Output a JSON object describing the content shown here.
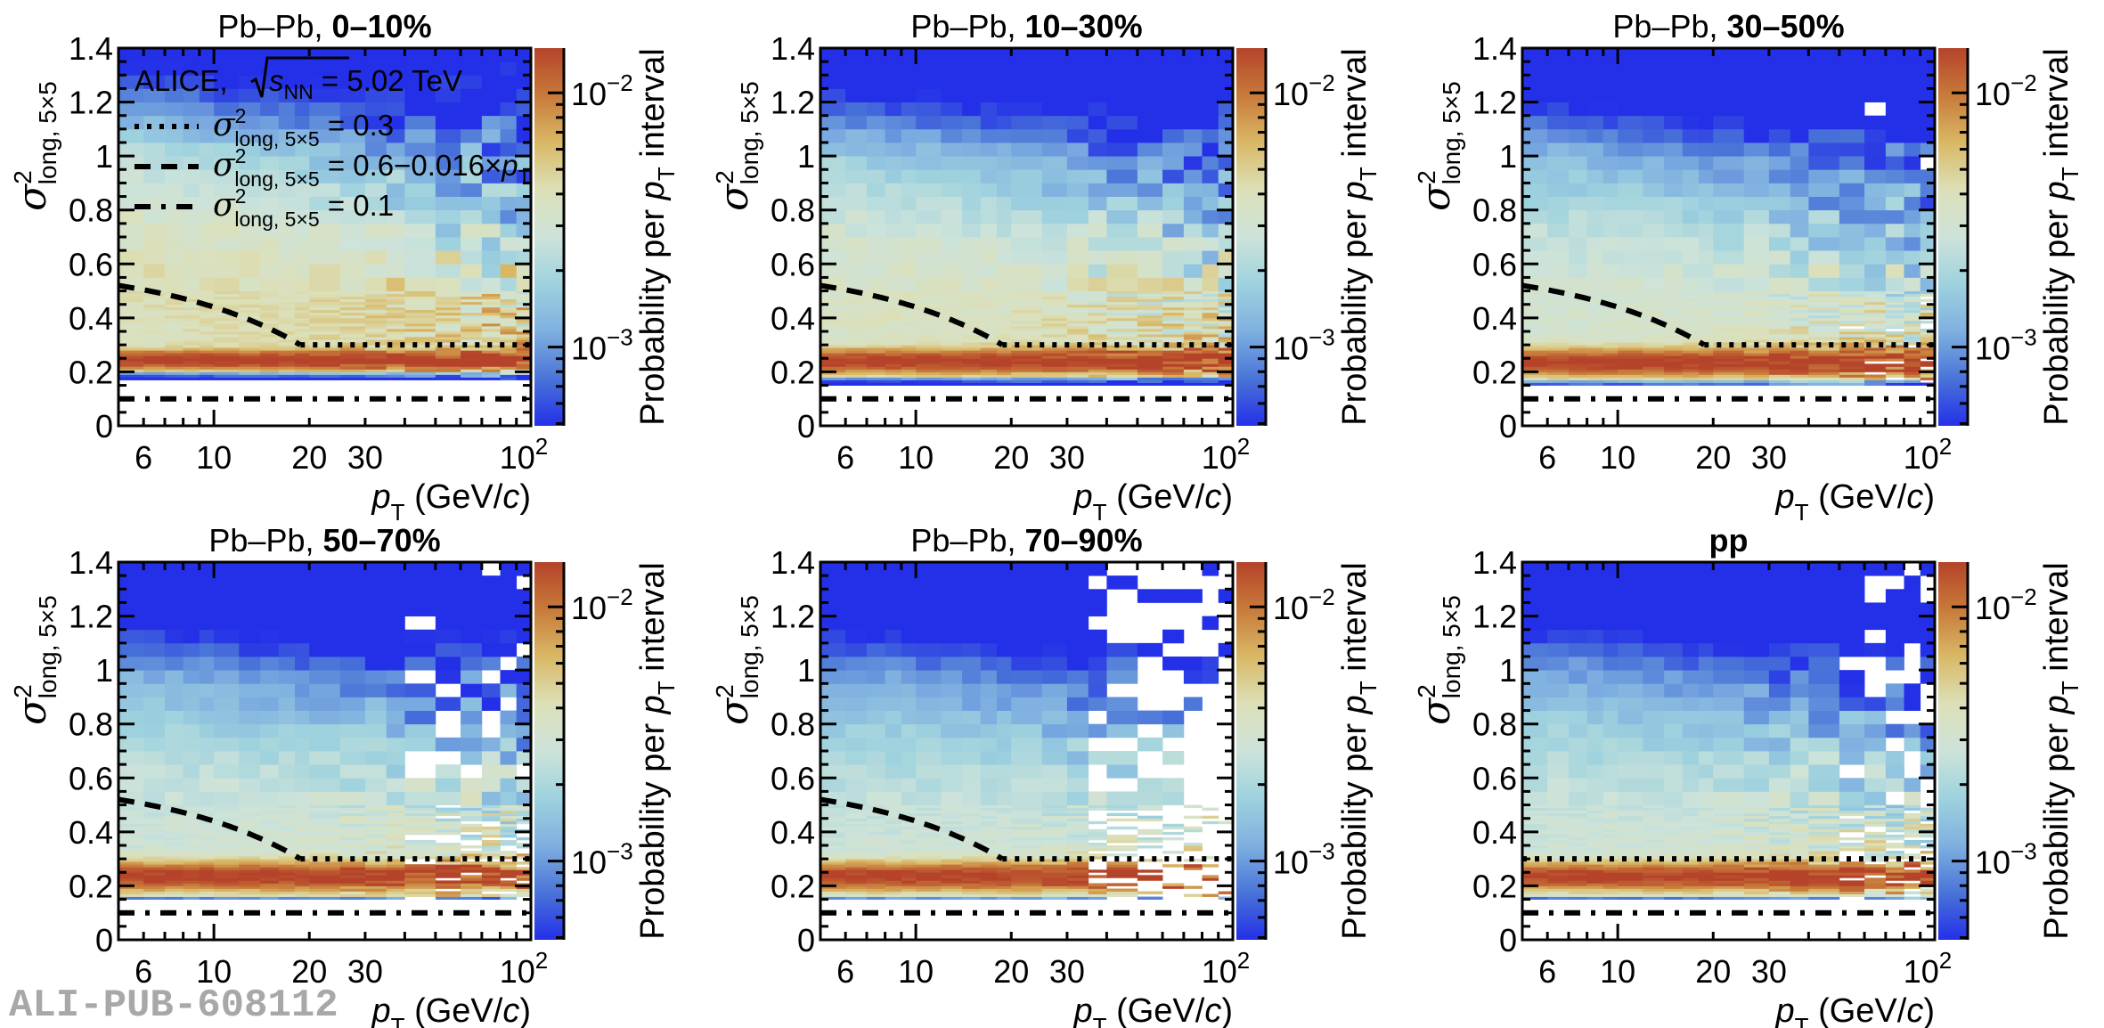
{
  "figure": {
    "watermark": "ALI-PUB-608112"
  },
  "chart_data": {
    "type": "heatmap",
    "layout": "2x3 grid of panels",
    "shared": {
      "xlabel_main": "p",
      "xlabel_sub": "T",
      "xlabel_unit_open": " (GeV/",
      "xlabel_unit_c": "c",
      "xlabel_unit_close": ")",
      "ylabel_main": "σ",
      "ylabel_sup": "2",
      "ylabel_sub": "long, 5×5",
      "xscale": "log",
      "xlim": [
        5,
        100
      ],
      "ylim": [
        0,
        1.4
      ],
      "xticks": [
        {
          "value": 6,
          "label": "6"
        },
        {
          "value": 10,
          "label": "10"
        },
        {
          "value": 20,
          "label": "20"
        },
        {
          "value": 30,
          "label": "30"
        },
        {
          "value": 100,
          "label": "10",
          "sup": "2"
        }
      ],
      "xminor": [
        5,
        6,
        7,
        8,
        9,
        10,
        20,
        30,
        40,
        50,
        60,
        70,
        80,
        90,
        100
      ],
      "yticks": [
        {
          "value": 0,
          "label": "0"
        },
        {
          "value": 0.2,
          "label": "0.2"
        },
        {
          "value": 0.4,
          "label": "0.4"
        },
        {
          "value": 0.6,
          "label": "0.6"
        },
        {
          "value": 0.8,
          "label": "0.8"
        },
        {
          "value": 1.0,
          "label": "1"
        },
        {
          "value": 1.2,
          "label": "1.2"
        },
        {
          "value": 1.4,
          "label": "1.4"
        }
      ],
      "colorbar": {
        "label_pre": "Probability per ",
        "label_p": "p",
        "label_sub": "T",
        "label_post": " interval",
        "scale": "log",
        "zlim": [
          0.00049,
          0.015
        ],
        "ticks": [
          {
            "value": 0.01,
            "base": "10",
            "exp": "−2"
          },
          {
            "value": 0.001,
            "base": "10",
            "exp": "−3"
          }
        ],
        "palette": [
          "#2430e8",
          "#4a74d8",
          "#7fb0e0",
          "#9ed2de",
          "#cde3da",
          "#dce0b8",
          "#d9b865",
          "#c87a3a",
          "#b5432a"
        ]
      },
      "x_bin_edges": [
        5,
        6,
        7,
        8,
        9,
        10,
        12,
        14,
        16,
        18,
        20,
        25,
        30,
        35,
        40,
        50,
        60,
        70,
        80,
        90,
        100
      ],
      "coarse_y_bin_width": 0.05,
      "fine_y_bin_width": 0.01,
      "fine_region": [
        0.12,
        0.5
      ]
    },
    "legend": {
      "header_pre": "ALICE, ",
      "header_s": "s",
      "header_sub": "NN",
      "header_post": " = 5.02 TeV",
      "entries": [
        {
          "style": "dotted",
          "sym": "σ",
          "sup": "2",
          "sub": "long, 5×5",
          "rhs": " = 0.3",
          "rhs_p": "",
          "rhs_sub": ""
        },
        {
          "style": "dashed",
          "sym": "σ",
          "sup": "2",
          "sub": "long, 5×5",
          "rhs": " = 0.6−0.016×",
          "rhs_p": "p",
          "rhs_sub": "T"
        },
        {
          "style": "dashdot",
          "sym": "σ",
          "sup": "2",
          "sub": "long, 5×5",
          "rhs": " = 0.1",
          "rhs_p": "",
          "rhs_sub": ""
        }
      ],
      "placement": "top-left of first panel"
    },
    "reference_lines": {
      "constant_0p3": {
        "y": 0.3,
        "style": "dotted",
        "x_from": 18.75,
        "x_to": 100
      },
      "linear": {
        "formula": "0.6-0.016*pT",
        "style": "dashed",
        "x_from": 5,
        "x_to": 18.75
      },
      "constant_0p1": {
        "y": 0.1,
        "style": "dashdot",
        "x_from": 5,
        "x_to": 100
      }
    },
    "panels": [
      {
        "id": "pbpb-0-10",
        "title_pre": "Pb–Pb, ",
        "title_bold": "0–10%",
        "show_legend": true,
        "show_pt_cut": true,
        "dist": {
          "band": 0.245,
          "band_w": 0.022,
          "low_edge": 0.175,
          "upper_level": 0.82,
          "upper_decay": 0.55,
          "sparse_from": 60,
          "empty_frac": 0.0,
          "seed": 11
        }
      },
      {
        "id": "pbpb-10-30",
        "title_pre": "Pb–Pb, ",
        "title_bold": "10–30%",
        "show_legend": false,
        "show_pt_cut": true,
        "dist": {
          "band": 0.24,
          "band_w": 0.028,
          "low_edge": 0.155,
          "upper_level": 0.7,
          "upper_decay": 0.8,
          "sparse_from": 55,
          "empty_frac": 0.0,
          "seed": 23
        }
      },
      {
        "id": "pbpb-30-50",
        "title_pre": "Pb–Pb, ",
        "title_bold": "30–50%",
        "show_legend": false,
        "show_pt_cut": true,
        "dist": {
          "band": 0.235,
          "band_w": 0.032,
          "low_edge": 0.14,
          "upper_level": 0.6,
          "upper_decay": 1.0,
          "sparse_from": 45,
          "empty_frac": 0.03,
          "seed": 37
        }
      },
      {
        "id": "pbpb-50-70",
        "title_pre": "Pb–Pb, ",
        "title_bold": "50–70%",
        "show_legend": false,
        "show_pt_cut": true,
        "dist": {
          "band": 0.235,
          "band_w": 0.034,
          "low_edge": 0.135,
          "upper_level": 0.52,
          "upper_decay": 1.15,
          "sparse_from": 40,
          "empty_frac": 0.12,
          "seed": 41
        }
      },
      {
        "id": "pbpb-70-90",
        "title_pre": "Pb–Pb, ",
        "title_bold": "70–90%",
        "show_legend": false,
        "show_pt_cut": true,
        "dist": {
          "band": 0.235,
          "band_w": 0.034,
          "low_edge": 0.13,
          "upper_level": 0.48,
          "upper_decay": 1.2,
          "sparse_from": 35,
          "empty_frac": 0.35,
          "seed": 53
        }
      },
      {
        "id": "pp",
        "title_pre": "",
        "title_bold": "pp",
        "show_legend": false,
        "show_pt_cut": false,
        "dist": {
          "band": 0.235,
          "band_w": 0.032,
          "low_edge": 0.135,
          "upper_level": 0.5,
          "upper_decay": 1.15,
          "sparse_from": 45,
          "empty_frac": 0.1,
          "seed": 67
        }
      }
    ]
  }
}
